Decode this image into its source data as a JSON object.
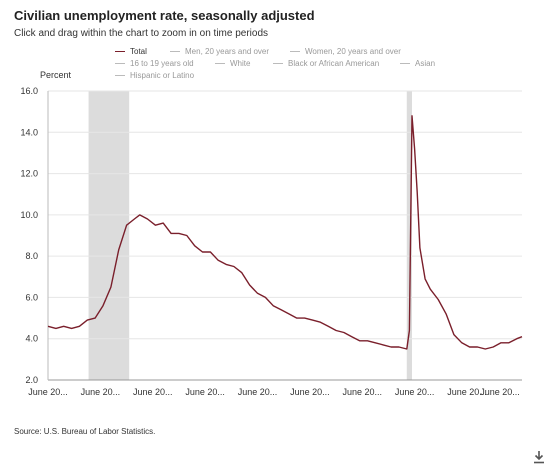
{
  "header": {
    "title": "Civilian unemployment rate, seasonally adjusted",
    "subtitle": "Click and drag within the chart to zoom in on time periods"
  },
  "legend": [
    {
      "label": "Total",
      "active": true
    },
    {
      "label": "Men, 20 years and over",
      "active": false
    },
    {
      "label": "Women, 20 years and over",
      "active": false
    },
    {
      "label": "16 to 19 years old",
      "active": false
    },
    {
      "label": "White",
      "active": false
    },
    {
      "label": "Black or African American",
      "active": false
    },
    {
      "label": "Asian",
      "active": false
    },
    {
      "label": "Hispanic or Latino",
      "active": false
    }
  ],
  "footer": {
    "source": "Source: U.S. Bureau of Labor Statistics.",
    "download_icon": "download-icon"
  },
  "colors": {
    "series": "#7a1f2b",
    "recession": "#dcdcdc",
    "grid": "#e6e6e6"
  },
  "chart_data": {
    "type": "line",
    "title": "Civilian unemployment rate, seasonally adjusted",
    "ylabel": "Percent",
    "ylim": [
      2.0,
      16.0
    ],
    "yticks": [
      2.0,
      4.0,
      6.0,
      8.0,
      10.0,
      12.0,
      14.0,
      16.0
    ],
    "xlim": [
      2006.4,
      2024.5
    ],
    "xticks": [
      {
        "x": 2006.4,
        "label": "June 20..."
      },
      {
        "x": 2008.4,
        "label": "June 20..."
      },
      {
        "x": 2010.4,
        "label": "June 20..."
      },
      {
        "x": 2012.4,
        "label": "June 20..."
      },
      {
        "x": 2014.4,
        "label": "June 20..."
      },
      {
        "x": 2016.4,
        "label": "June 20..."
      },
      {
        "x": 2018.4,
        "label": "June 20..."
      },
      {
        "x": 2020.4,
        "label": "June 20..."
      },
      {
        "x": 2022.4,
        "label": "June 20..."
      },
      {
        "x": 2024.4,
        "label": "June 20..."
      }
    ],
    "recessions": [
      [
        2007.95,
        2009.5
      ],
      [
        2020.1,
        2020.3
      ]
    ],
    "grid": true,
    "series": [
      {
        "name": "Total",
        "x": [
          2006.4,
          2006.7,
          2007.0,
          2007.3,
          2007.6,
          2007.9,
          2008.2,
          2008.5,
          2008.8,
          2009.1,
          2009.4,
          2009.7,
          2009.9,
          2010.2,
          2010.5,
          2010.8,
          2011.1,
          2011.4,
          2011.7,
          2012.0,
          2012.3,
          2012.6,
          2012.9,
          2013.2,
          2013.5,
          2013.8,
          2014.1,
          2014.4,
          2014.7,
          2015.0,
          2015.3,
          2015.6,
          2015.9,
          2016.2,
          2016.5,
          2016.8,
          2017.1,
          2017.4,
          2017.7,
          2018.0,
          2018.3,
          2018.6,
          2018.9,
          2019.2,
          2019.5,
          2019.8,
          2020.1,
          2020.2,
          2020.3,
          2020.4,
          2020.5,
          2020.6,
          2020.8,
          2021.0,
          2021.3,
          2021.6,
          2021.9,
          2022.2,
          2022.5,
          2022.8,
          2023.1,
          2023.4,
          2023.7,
          2024.0,
          2024.3,
          2024.5
        ],
        "values": [
          4.6,
          4.5,
          4.6,
          4.5,
          4.6,
          4.9,
          5.0,
          5.6,
          6.5,
          8.3,
          9.5,
          9.8,
          10.0,
          9.8,
          9.5,
          9.6,
          9.1,
          9.1,
          9.0,
          8.5,
          8.2,
          8.2,
          7.8,
          7.6,
          7.5,
          7.2,
          6.6,
          6.2,
          6.0,
          5.6,
          5.4,
          5.2,
          5.0,
          5.0,
          4.9,
          4.8,
          4.6,
          4.4,
          4.3,
          4.1,
          3.9,
          3.9,
          3.8,
          3.7,
          3.6,
          3.6,
          3.5,
          4.4,
          14.8,
          13.2,
          11.1,
          8.4,
          6.9,
          6.4,
          5.9,
          5.2,
          4.2,
          3.8,
          3.6,
          3.6,
          3.5,
          3.6,
          3.8,
          3.8,
          4.0,
          4.1
        ]
      }
    ]
  }
}
